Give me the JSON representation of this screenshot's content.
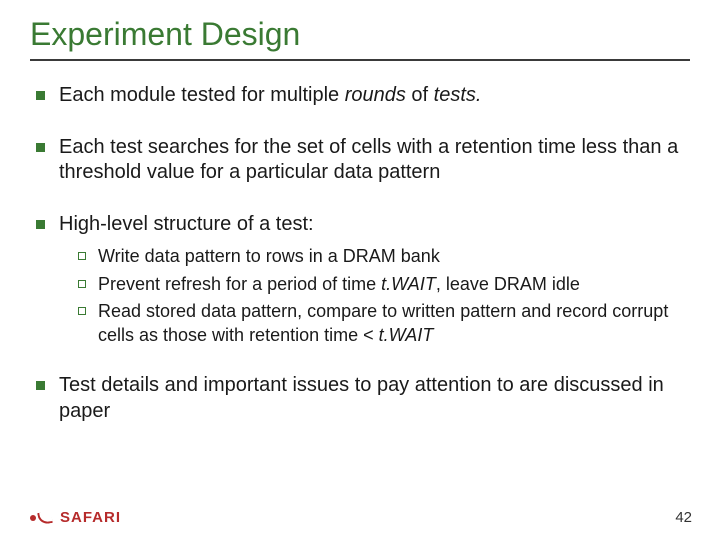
{
  "title": "Experiment Design",
  "bullets": {
    "b1_pre": "Each module tested for multiple ",
    "b1_em1": "rounds",
    "b1_mid": " of ",
    "b1_em2": "tests.",
    "b2": "Each test searches for the set of cells with a retention time less than a threshold value for a particular data pattern",
    "b3": "High-level structure of a test:",
    "b4": "Test details and important issues to pay attention to are discussed in paper"
  },
  "sub": {
    "s1": "Write data pattern to rows in a DRAM bank",
    "s2_pre": "Prevent refresh for a period of time ",
    "s2_em": "t.WAIT",
    "s2_post": ", leave DRAM idle",
    "s3_pre": "Read stored data pattern, compare to written pattern and record corrupt cells as those with retention time < ",
    "s3_em": "t.WAIT"
  },
  "brand": "SAFARI",
  "page": "42",
  "colors": {
    "accent": "#3a7a33",
    "rule": "#3a3a3a",
    "brand": "#b62b2b",
    "text": "#1a1a1a",
    "bg": "#ffffff"
  }
}
